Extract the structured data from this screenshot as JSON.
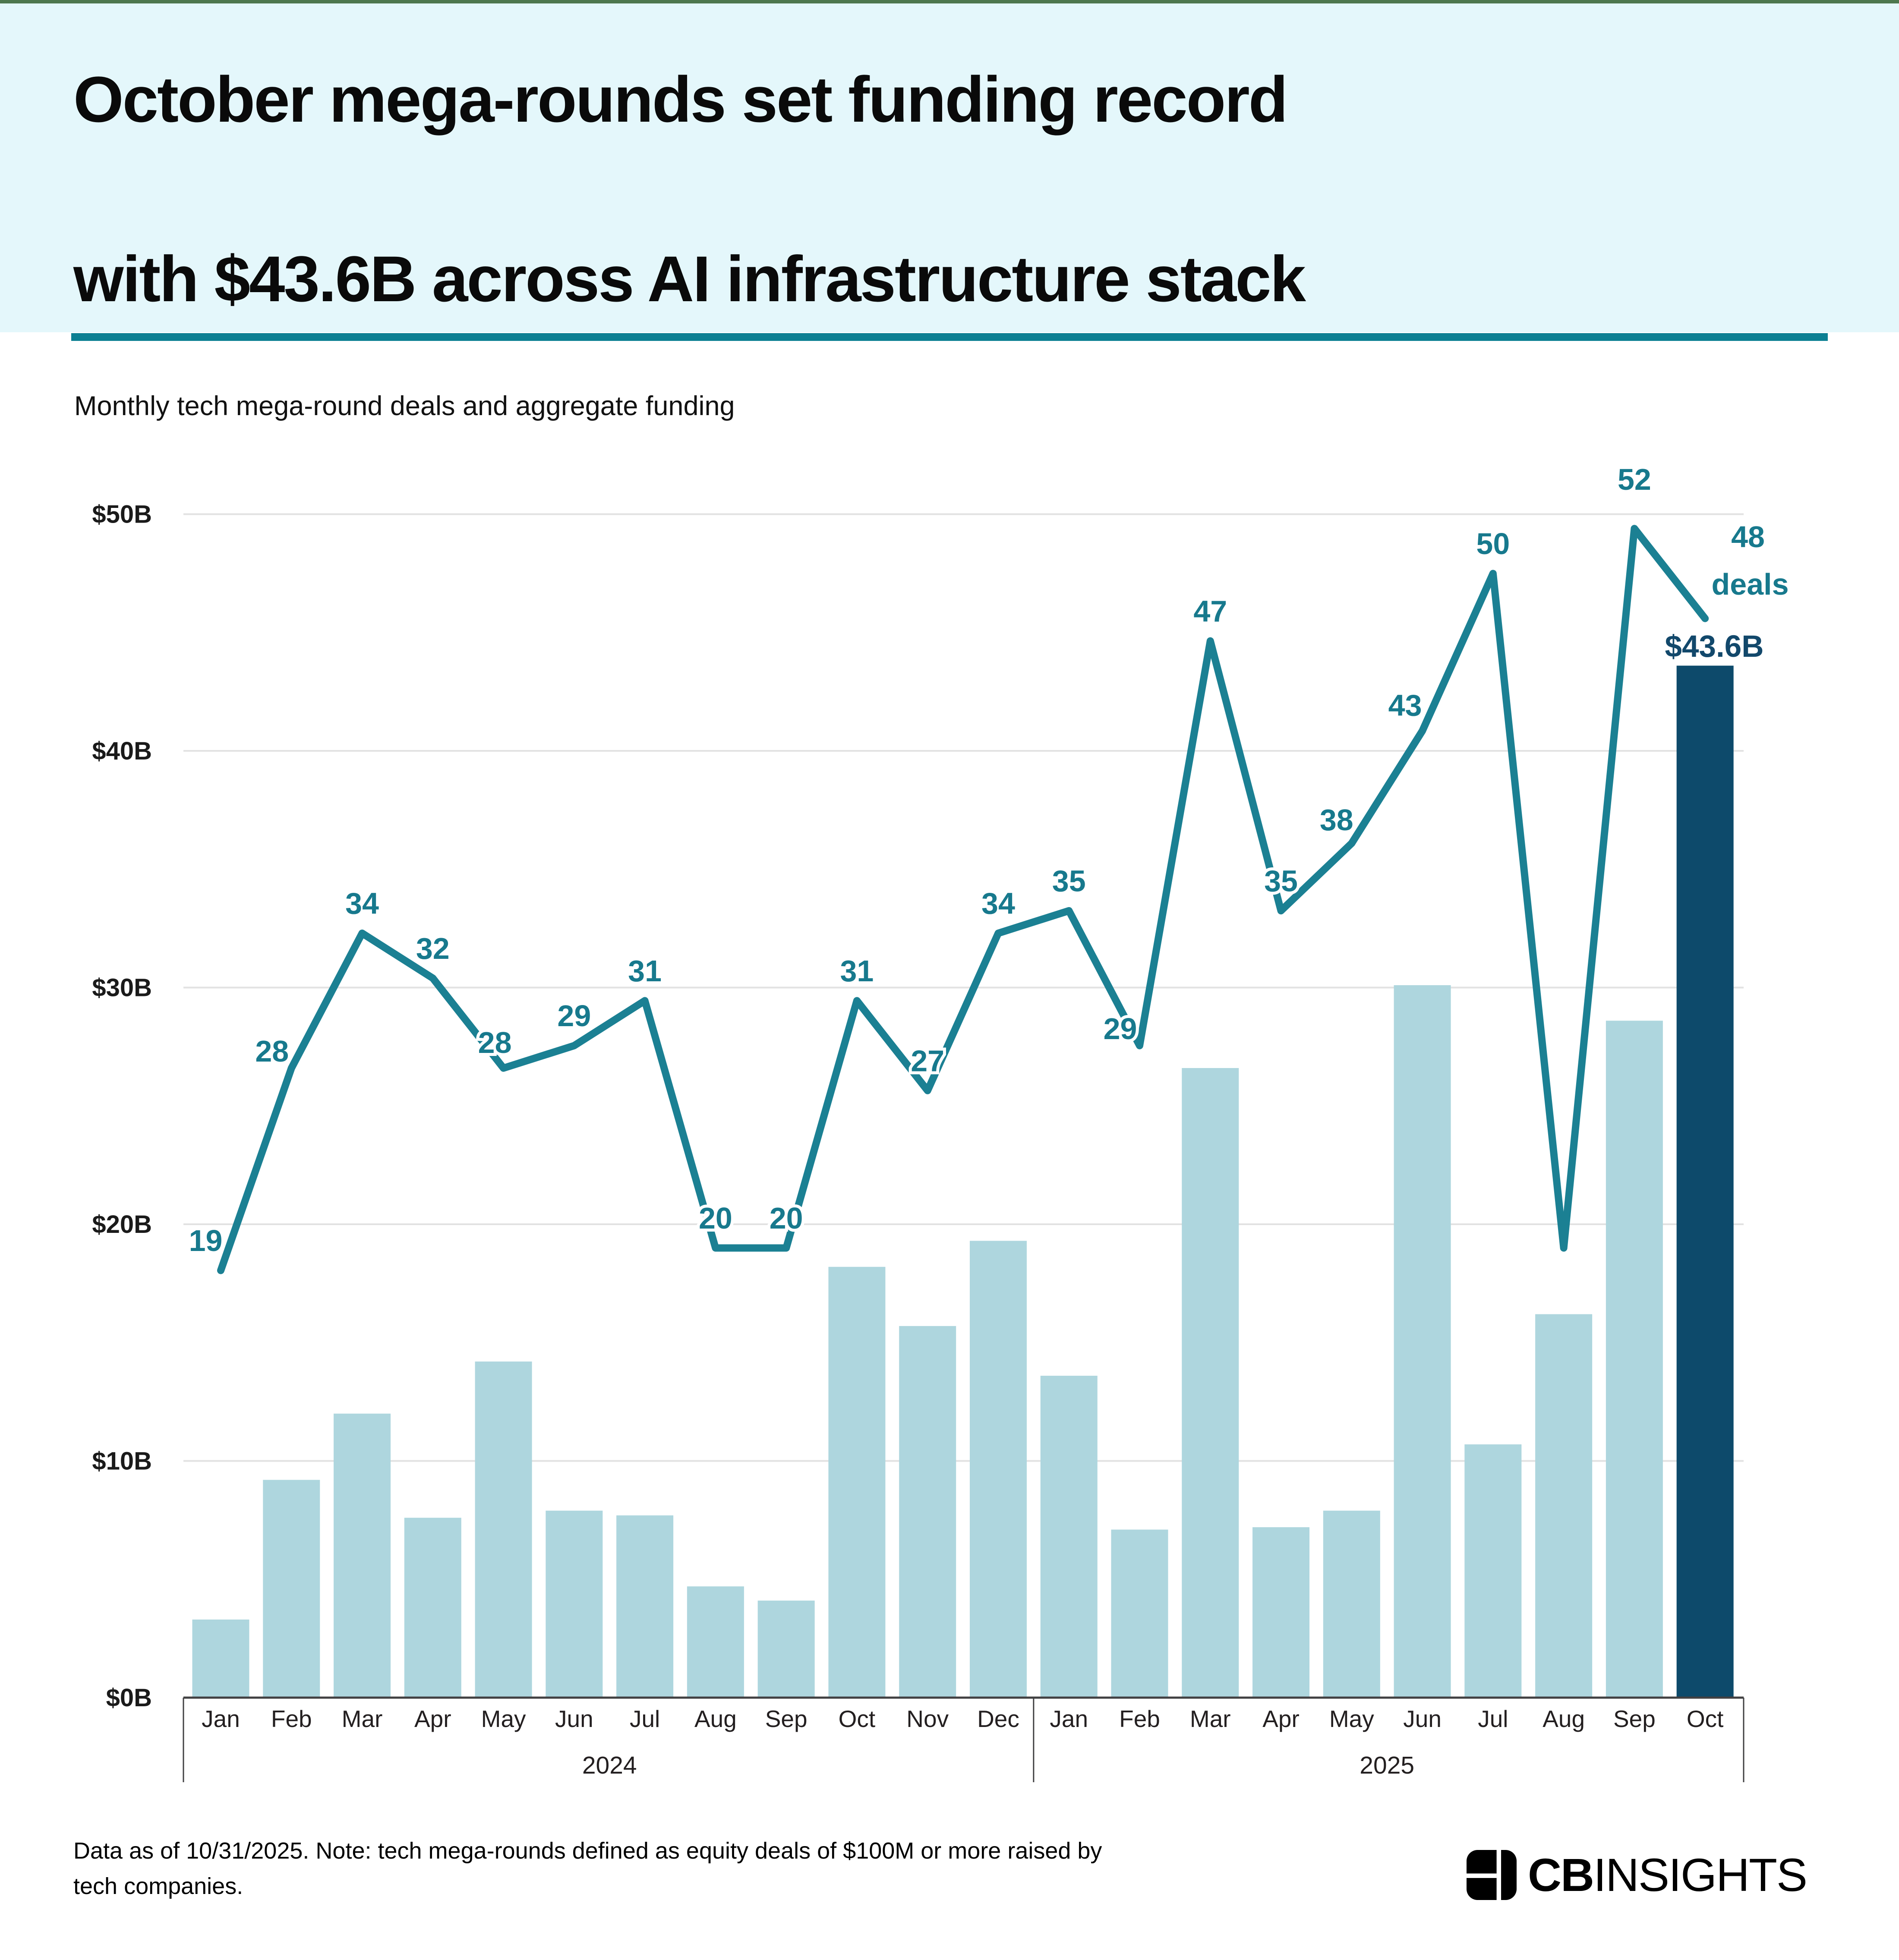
{
  "header": {
    "title_line1": "October mega-rounds set funding record",
    "title_line2": "with $43.6B across AI infrastructure stack"
  },
  "subtitle": "Monthly tech mega-round deals and aggregate funding",
  "chart_data": {
    "type": "combo-bar-line",
    "title": "Monthly tech mega-round deals and aggregate funding",
    "categories": [
      "Jan",
      "Feb",
      "Mar",
      "Apr",
      "May",
      "Jun",
      "Jul",
      "Aug",
      "Sep",
      "Oct",
      "Nov",
      "Dec",
      "Jan",
      "Feb",
      "Mar",
      "Apr",
      "May",
      "Jun",
      "Jul",
      "Aug",
      "Sep",
      "Oct"
    ],
    "year_groups": [
      {
        "label": "2024",
        "start": 0,
        "end": 11
      },
      {
        "label": "2025",
        "start": 12,
        "end": 21
      }
    ],
    "series": [
      {
        "name": "Aggregate mega-round funding",
        "type": "bar",
        "unit": "$B",
        "values": [
          3.3,
          9.2,
          12.0,
          7.6,
          14.2,
          7.9,
          7.7,
          4.7,
          4.1,
          18.2,
          15.7,
          19.3,
          13.6,
          7.1,
          26.6,
          7.2,
          7.9,
          30.1,
          10.7,
          16.2,
          28.6,
          43.6
        ]
      },
      {
        "name": "Mega-round deals",
        "type": "line",
        "unit": "deals",
        "values": [
          19,
          28,
          34,
          32,
          28,
          29,
          31,
          20,
          20,
          31,
          27,
          34,
          35,
          29,
          47,
          35,
          38,
          43,
          50,
          20,
          52,
          48
        ],
        "label_hidden_indices": [
          19
        ]
      }
    ],
    "highlight_index": 21,
    "annotations": {
      "highlight_funding_label": "$43.6B",
      "highlight_deals_label_line1": "48",
      "highlight_deals_label_line2": "deals"
    },
    "y_ticks": [
      "$0B",
      "$10B",
      "$20B",
      "$30B",
      "$40B",
      "$50B"
    ],
    "ylim": [
      0,
      50
    ],
    "grid": true,
    "legend": "none"
  },
  "colors": {
    "top_strip": "#4d774e",
    "header_bg": "#e4f7fb",
    "divider": "#0b7f92",
    "bar": "#aed6de",
    "bar_highlight": "#0d4a6b",
    "line": "#1b8093",
    "data_label": "#17798d",
    "funding_label": "#12486b",
    "grid": "#e2e2e2",
    "axis": "#414042"
  },
  "footnote": {
    "line1": "Data as of 10/31/2025. Note: tech mega-rounds defined as equity deals of $100M or more raised by",
    "line2": "tech companies."
  },
  "logo": {
    "text_bold": "CB",
    "text_regular": "INSIGHTS"
  }
}
